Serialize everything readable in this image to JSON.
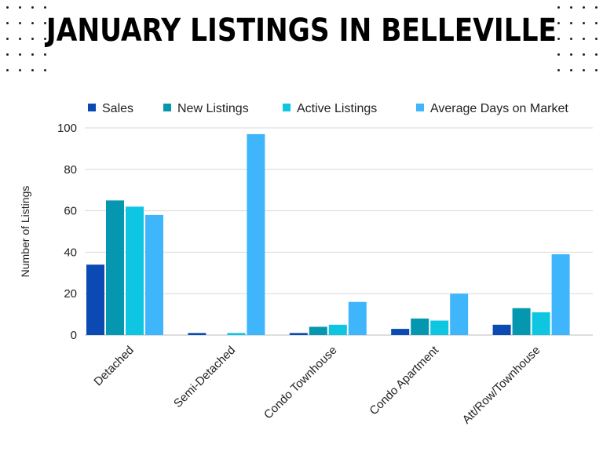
{
  "title": "JANUARY LISTINGS IN BELLEVILLE",
  "colors": {
    "sales": "#0b4ab3",
    "new_listings": "#0597b0",
    "active_listings": "#0fc6e2",
    "avg_days": "#3fb6fb",
    "grid": "#d9d9d9",
    "text": "#222222"
  },
  "chart_data": {
    "type": "bar",
    "title": "",
    "xlabel": "",
    "ylabel": "Number of Listings",
    "ylim": [
      0,
      100
    ],
    "yticks": [
      0,
      20,
      40,
      60,
      80,
      100
    ],
    "grid": true,
    "legend_position": "top",
    "categories": [
      "Detached",
      "Semi-Detached",
      "Condo Townhouse",
      "Condo Apartment",
      "Att/Row/Townhouse"
    ],
    "series": [
      {
        "name": "Sales",
        "values": [
          34,
          1,
          1,
          3,
          5
        ]
      },
      {
        "name": "New Listings",
        "values": [
          65,
          0,
          4,
          8,
          13
        ]
      },
      {
        "name": "Active Listings",
        "values": [
          62,
          1,
          5,
          7,
          11
        ]
      },
      {
        "name": "Average Days on Market",
        "values": [
          58,
          97,
          16,
          20,
          39
        ]
      }
    ]
  }
}
